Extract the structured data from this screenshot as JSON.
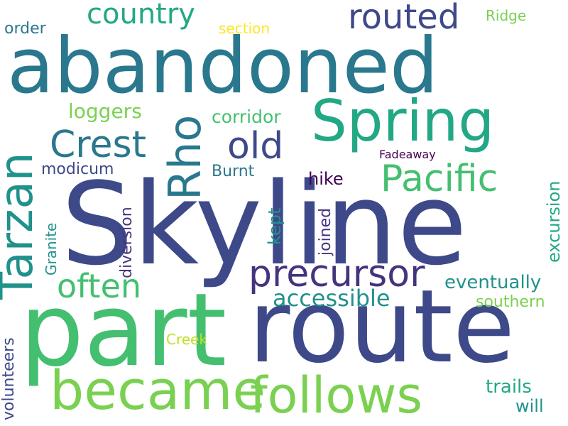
{
  "words": {
    "abandoned": "abandoned",
    "skyline": "Skyline",
    "part": "part",
    "route": "route",
    "spring": "Spring",
    "tarzan": "Tarzan",
    "rho": "Rho",
    "became": "became",
    "follows": "follows",
    "precursor": "precursor",
    "crest": "Crest",
    "old": "old",
    "pacific": "Pacific",
    "routed": "routed",
    "country": "country",
    "often": "often",
    "accessible": "accessible",
    "loggers": "loggers",
    "corridor": "corridor",
    "modicum": "modicum",
    "burnt": "Burnt",
    "hike": "hike",
    "eventually": "eventually",
    "excursion": "excursion",
    "southern": "southern",
    "trails": "trails",
    "will": "will",
    "order": "order",
    "section": "section",
    "ridge": "Ridge",
    "fadeaway": "Fadeaway",
    "granite": "Granite",
    "diversion": "diversion",
    "kept": "kept",
    "joined": "joined",
    "volunteers": "volunteers",
    "creek": "Creek"
  },
  "colors": {
    "deep_purple": "#440154",
    "purple_blue": "#46337e",
    "indigo": "#3e4989",
    "steel_blue": "#31688e",
    "teal_blue": "#2a788e",
    "teal": "#21918c",
    "sea_green": "#22a884",
    "green": "#44bf70",
    "light_green": "#7ad151",
    "lime": "#bddf26",
    "yellow": "#fde725"
  }
}
